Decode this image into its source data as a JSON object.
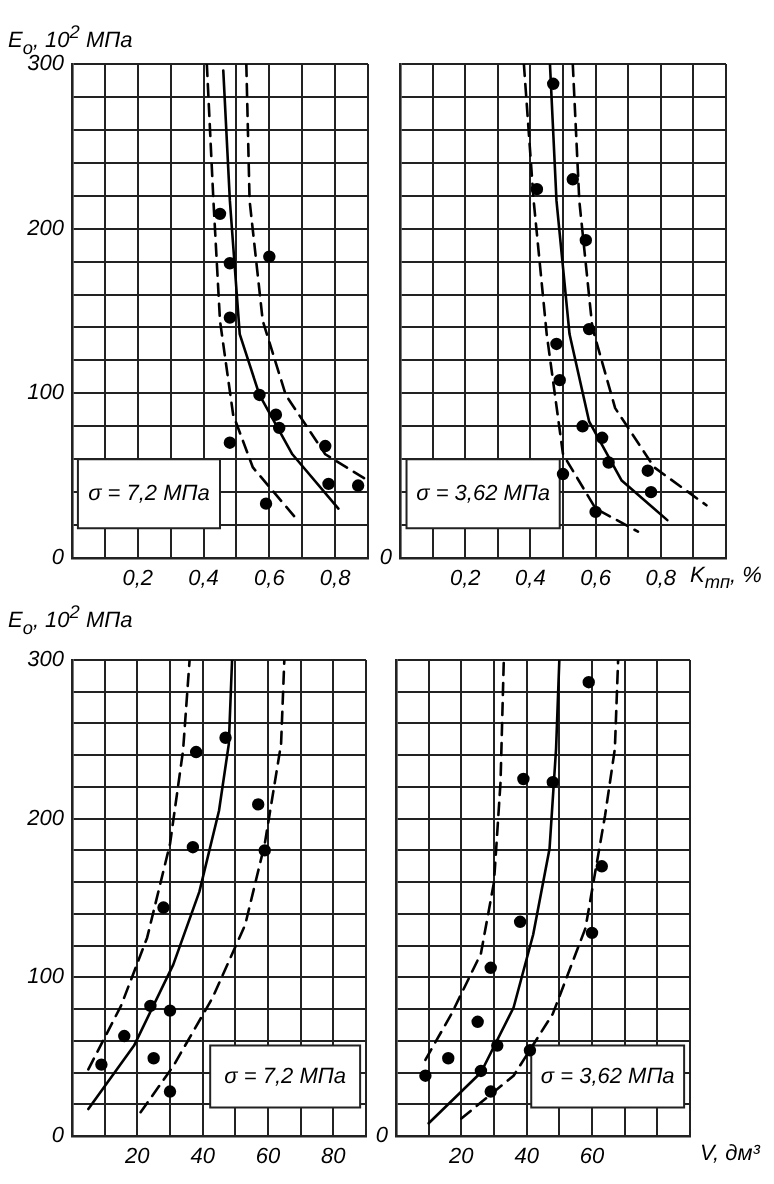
{
  "chart_data": [
    {
      "type": "scatter",
      "ylabel": "E$_{o}$, 10$^{2}$ МПа",
      "xlim": [
        0,
        0.9
      ],
      "ylim": [
        0,
        300
      ],
      "xticks": [
        {
          "value": 0,
          "label": null
        },
        {
          "value": 0.1,
          "label": null
        },
        {
          "value": 0.2,
          "label": "0,2"
        },
        {
          "value": 0.3,
          "label": null
        },
        {
          "value": 0.4,
          "label": "0,4"
        },
        {
          "value": 0.5,
          "label": null
        },
        {
          "value": 0.6,
          "label": "0,6"
        },
        {
          "value": 0.7,
          "label": null
        },
        {
          "value": 0.8,
          "label": "0,8"
        },
        {
          "value": 0.9,
          "label": null
        }
      ],
      "yticks": [
        0,
        {
          "value": 20,
          "label": null
        },
        {
          "value": 40,
          "label": null
        },
        {
          "value": 60,
          "label": null
        },
        {
          "value": 80,
          "label": null
        },
        100,
        {
          "value": 120,
          "label": null
        },
        {
          "value": 140,
          "label": null
        },
        {
          "value": 160,
          "label": null
        },
        {
          "value": 180,
          "label": null
        },
        200,
        {
          "value": 220,
          "label": null
        },
        {
          "value": 240,
          "label": null
        },
        {
          "value": 260,
          "label": null
        },
        {
          "value": 280,
          "label": null
        },
        300
      ],
      "grid": true,
      "annotations": [
        "σ = 7,2 МПа"
      ],
      "series": [
        {
          "type": "scatter",
          "color": "#000000",
          "marker": "circle",
          "x": [
            0.45,
            0.48,
            0.48,
            0.6,
            0.57,
            0.62,
            0.63,
            0.48,
            0.59,
            0.77,
            0.78,
            0.87
          ],
          "values": [
            209,
            179,
            146,
            183,
            99,
            87,
            79,
            70,
            33,
            68,
            45,
            44
          ]
        },
        {
          "type": "line",
          "color": "#000000",
          "marker": "none",
          "line_style": "solid",
          "x": [
            0.46,
            0.48,
            0.51,
            0.57,
            0.67,
            0.81
          ],
          "values": [
            296,
            217,
            136,
            99,
            63,
            30
          ]
        },
        {
          "type": "line",
          "color": "#000000",
          "marker": "none",
          "line_style": "dashed",
          "x": [
            0.41,
            0.43,
            0.45,
            0.49,
            0.55,
            0.69
          ],
          "values": [
            300,
            217,
            144,
            87,
            55,
            22
          ]
        },
        {
          "type": "line",
          "color": "#000000",
          "marker": "none",
          "line_style": "dashed",
          "x": [
            0.53,
            0.54,
            0.58,
            0.65,
            0.77,
            0.9
          ],
          "values": [
            300,
            217,
            144,
            99,
            63,
            47
          ]
        }
      ]
    },
    {
      "type": "scatter",
      "xlabel": "K$_{тп}$, %",
      "xlim": [
        0,
        1
      ],
      "ylim": [
        0,
        300
      ],
      "xticks": [
        {
          "value": 0,
          "label": null
        },
        {
          "value": 0.1,
          "label": null
        },
        {
          "value": 0.2,
          "label": "0,2"
        },
        {
          "value": 0.3,
          "label": null
        },
        {
          "value": 0.4,
          "label": "0,4"
        },
        {
          "value": 0.5,
          "label": null
        },
        {
          "value": 0.6,
          "label": "0,6"
        },
        {
          "value": 0.7,
          "label": null
        },
        {
          "value": 0.8,
          "label": "0,8"
        },
        {
          "value": 0.9,
          "label": null
        },
        {
          "value": 1,
          "label": null
        }
      ],
      "yticks": [
        0,
        20,
        40,
        60,
        80,
        100,
        120,
        140,
        160,
        180,
        200,
        220,
        240,
        260,
        280,
        300
      ],
      "tick_labels": "x",
      "grid": true,
      "annotations": [
        "σ = 3,62 МПа",
        "0"
      ],
      "series": [
        {
          "type": "scatter",
          "color": "#000000",
          "marker": "circle",
          "x": [
            0.47,
            0.53,
            0.42,
            0.57,
            0.58,
            0.48,
            0.49,
            0.56,
            0.62,
            0.64,
            0.76,
            0.77,
            0.5,
            0.6
          ],
          "values": [
            288,
            230,
            224,
            193,
            139,
            130,
            108,
            80,
            73,
            58,
            53,
            40,
            51,
            28
          ]
        },
        {
          "type": "line",
          "color": "#000000",
          "marker": "none",
          "line_style": "solid",
          "x": [
            0.46,
            0.48,
            0.52,
            0.58,
            0.68,
            0.82
          ],
          "values": [
            300,
            217,
            136,
            83,
            47,
            23
          ]
        },
        {
          "type": "line",
          "color": "#000000",
          "marker": "none",
          "line_style": "dashed",
          "x": [
            0.38,
            0.41,
            0.45,
            0.5,
            0.6,
            0.73
          ],
          "values": [
            300,
            217,
            136,
            63,
            30,
            16
          ]
        },
        {
          "type": "line",
          "color": "#000000",
          "marker": "none",
          "line_style": "dashed",
          "x": [
            0.53,
            0.55,
            0.59,
            0.66,
            0.78,
            0.94
          ],
          "values": [
            300,
            217,
            140,
            91,
            55,
            32
          ]
        }
      ]
    },
    {
      "type": "scatter",
      "ylabel": "E$_{o}$, 10$^{2}$ МПа",
      "xlim": [
        0,
        90
      ],
      "ylim": [
        0,
        300
      ],
      "xticks": [
        {
          "value": 0,
          "label": null
        },
        {
          "value": 10,
          "label": null
        },
        20,
        {
          "value": 30,
          "label": null
        },
        40,
        {
          "value": 50,
          "label": null
        },
        60,
        {
          "value": 70,
          "label": null
        },
        80,
        {
          "value": 90,
          "label": null
        }
      ],
      "yticks": [
        0,
        {
          "value": 20,
          "label": null
        },
        {
          "value": 40,
          "label": null
        },
        {
          "value": 60,
          "label": null
        },
        {
          "value": 80,
          "label": null
        },
        100,
        {
          "value": 120,
          "label": null
        },
        {
          "value": 140,
          "label": null
        },
        {
          "value": 160,
          "label": null
        },
        {
          "value": 180,
          "label": null
        },
        200,
        {
          "value": 220,
          "label": null
        },
        {
          "value": 240,
          "label": null
        },
        {
          "value": 260,
          "label": null
        },
        {
          "value": 280,
          "label": null
        },
        300
      ],
      "grid": true,
      "annotations": [
        "σ = 7,2 МПа"
      ],
      "series": [
        {
          "type": "scatter",
          "color": "#000000",
          "marker": "circle",
          "x": [
            38,
            47,
            37,
            57,
            59,
            28,
            24,
            30,
            16,
            9,
            25,
            30
          ],
          "values": [
            242,
            251,
            182,
            209,
            180,
            144,
            82,
            79,
            63,
            45,
            49,
            28
          ]
        },
        {
          "type": "line",
          "color": "#000000",
          "marker": "none",
          "line_style": "solid",
          "x": [
            5,
            19,
            31,
            39,
            45,
            48,
            49
          ],
          "values": [
            17,
            57,
            108,
            154,
            205,
            247,
            300
          ]
        },
        {
          "type": "line",
          "color": "#000000",
          "marker": "none",
          "line_style": "dashed",
          "x": [
            5,
            15,
            23,
            30,
            34,
            36
          ],
          "values": [
            42,
            82,
            125,
            184,
            243,
            300
          ]
        },
        {
          "type": "line",
          "color": "#000000",
          "marker": "none",
          "line_style": "dashed",
          "x": [
            21,
            31,
            43,
            53,
            59,
            64,
            65
          ],
          "values": [
            15,
            44,
            87,
            133,
            184,
            247,
            300
          ]
        }
      ]
    },
    {
      "type": "scatter",
      "xlabel": "V, дм³",
      "xlim": [
        0,
        90
      ],
      "ylim": [
        0,
        300
      ],
      "xticks": [
        {
          "value": 0,
          "label": null
        },
        {
          "value": 10,
          "label": null
        },
        20,
        {
          "value": 30,
          "label": null
        },
        40,
        {
          "value": 50,
          "label": null
        },
        60,
        {
          "value": 70,
          "label": null
        },
        {
          "value": 80,
          "label": null
        },
        {
          "value": 90,
          "label": null
        }
      ],
      "yticks": [
        0,
        20,
        40,
        60,
        80,
        100,
        120,
        140,
        160,
        180,
        200,
        220,
        240,
        260,
        280,
        300
      ],
      "tick_labels": "x",
      "grid": true,
      "annotations": [
        "σ = 3,62 МПа",
        "0"
      ],
      "series": [
        {
          "type": "scatter",
          "color": "#000000",
          "marker": "circle",
          "x": [
            59,
            39,
            48,
            63,
            60,
            38,
            29,
            25,
            16,
            31,
            41,
            9,
            26,
            29
          ],
          "values": [
            286,
            225,
            223,
            170,
            128,
            135,
            106,
            72,
            49,
            57,
            54,
            38,
            41,
            28
          ]
        },
        {
          "type": "line",
          "color": "#000000",
          "marker": "none",
          "line_style": "solid",
          "x": [
            10,
            26,
            36,
            42,
            47,
            49,
            50
          ],
          "values": [
            8,
            40,
            81,
            127,
            181,
            244,
            300
          ]
        },
        {
          "type": "line",
          "color": "#000000",
          "marker": "none",
          "line_style": "dashed",
          "x": [
            9,
            17,
            26,
            30,
            32,
            33
          ],
          "values": [
            48,
            77,
            115,
            160,
            223,
            300
          ]
        },
        {
          "type": "line",
          "color": "#000000",
          "marker": "none",
          "line_style": "dashed",
          "x": [
            20,
            36,
            48,
            58,
            64,
            67,
            68
          ],
          "values": [
            11,
            38,
            77,
            131,
            202,
            244,
            300
          ]
        }
      ]
    }
  ]
}
